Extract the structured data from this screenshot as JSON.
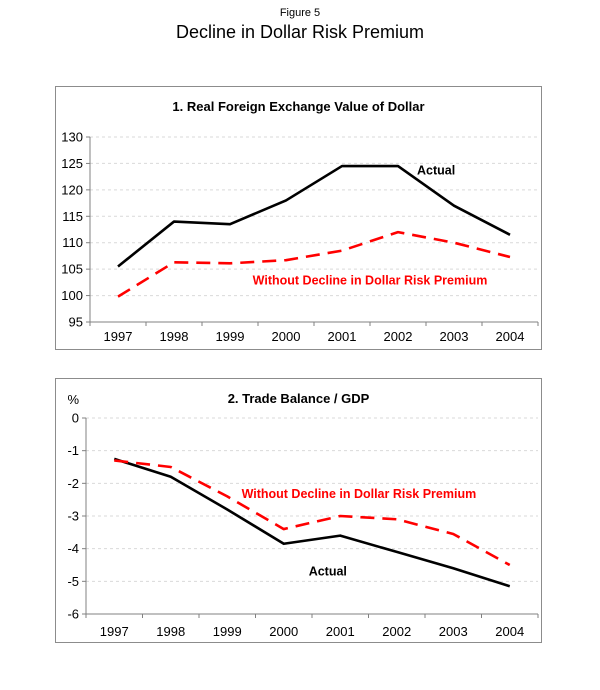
{
  "figure": {
    "label": "Figure 5",
    "title": "Decline in Dollar Risk Premium"
  },
  "colors": {
    "actual": "#000000",
    "counterfactual": "#ff0000",
    "grid": "#d9d9d9",
    "axis": "#808080",
    "text": "#000000"
  },
  "chart_data": [
    {
      "type": "line",
      "title": "1. Real Foreign Exchange Value of Dollar",
      "categories": [
        "1997",
        "1998",
        "1999",
        "2000",
        "2001",
        "2002",
        "2003",
        "2004"
      ],
      "ylim": [
        95,
        130
      ],
      "yticks": [
        130,
        125,
        120,
        115,
        110,
        105,
        100,
        95
      ],
      "grid": true,
      "legend_position": "inline-annotations",
      "series": [
        {
          "name": "Actual",
          "style": "solid",
          "color": "#000000",
          "values": [
            105.5,
            114,
            113.5,
            118,
            124.5,
            124.5,
            117,
            111.5
          ]
        },
        {
          "name": "Without Decline in Dollar Risk Premium",
          "style": "dashed",
          "color": "#ff0000",
          "values": [
            99.8,
            106.3,
            106.1,
            106.7,
            108.5,
            112,
            110,
            107.3
          ]
        }
      ],
      "annotations": [
        {
          "text": "Actual",
          "x": 5.68,
          "y": 123.8,
          "color": "#000000"
        },
        {
          "text": "Without Decline in Dollar Risk Premium",
          "x": 4.5,
          "y": 102.9,
          "color": "#ff0000"
        }
      ]
    },
    {
      "type": "line",
      "title": "2. Trade Balance / GDP",
      "ylabel": "%",
      "categories": [
        "1997",
        "1998",
        "1999",
        "2000",
        "2001",
        "2002",
        "2003",
        "2004"
      ],
      "ylim": [
        -6,
        0
      ],
      "yticks": [
        0,
        -1,
        -2,
        -3,
        -4,
        -5,
        -6
      ],
      "grid": true,
      "legend_position": "inline-annotations",
      "series": [
        {
          "name": "Actual",
          "style": "solid",
          "color": "#000000",
          "values": [
            -1.25,
            -1.8,
            -2.8,
            -3.85,
            -3.6,
            -4.1,
            -4.6,
            -5.15
          ]
        },
        {
          "name": "Without Decline in Dollar Risk Premium",
          "style": "dashed",
          "color": "#ff0000",
          "values": [
            -1.3,
            -1.5,
            -2.4,
            -3.4,
            -3.0,
            -3.1,
            -3.55,
            -4.5
          ]
        }
      ],
      "annotations": [
        {
          "text": "Without Decline in Dollar Risk Premium",
          "x": 4.33,
          "y": -2.31,
          "color": "#ff0000"
        },
        {
          "text": "Actual",
          "x": 3.78,
          "y": -4.68,
          "color": "#000000"
        }
      ]
    }
  ]
}
